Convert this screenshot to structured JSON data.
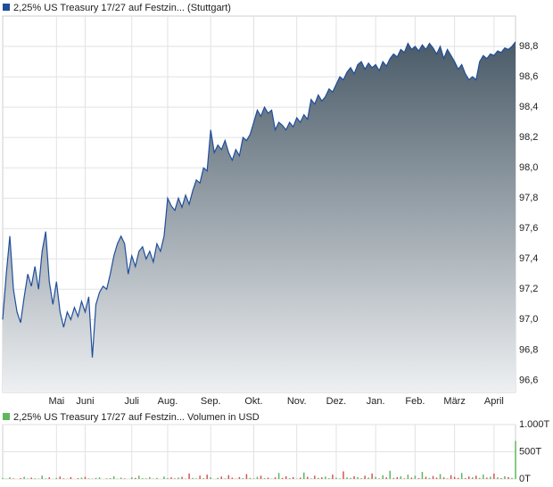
{
  "chart_data": [
    {
      "type": "area",
      "legend": "2,25% US Treasury 17/27 auf Festzin... (Stuttgart)",
      "legend_color": "#1f4e9c",
      "line_color": "#1f4e9c",
      "fill_top": "#4a5b68",
      "fill_bottom": "#eef0f2",
      "grid": true,
      "ylim": [
        96.52,
        99.0
      ],
      "yticks": [
        {
          "value": 96.6,
          "label": "96,6"
        },
        {
          "value": 96.8,
          "label": "96,8"
        },
        {
          "value": 97.0,
          "label": "97,0"
        },
        {
          "value": 97.2,
          "label": "97,2"
        },
        {
          "value": 97.4,
          "label": "97,4"
        },
        {
          "value": 97.6,
          "label": "97,6"
        },
        {
          "value": 97.8,
          "label": "97,8"
        },
        {
          "value": 98.0,
          "label": "98,0"
        },
        {
          "value": 98.2,
          "label": "98,2"
        },
        {
          "value": 98.4,
          "label": "98,4"
        },
        {
          "value": 98.6,
          "label": "98,6"
        },
        {
          "value": 98.8,
          "label": "98,8"
        }
      ],
      "categories": [
        null,
        null,
        null,
        null,
        null,
        null,
        null,
        null,
        null,
        null,
        null,
        null,
        null,
        null,
        null,
        "Mai",
        null,
        null,
        null,
        null,
        null,
        null,
        null,
        "Juni",
        null,
        null,
        null,
        null,
        null,
        null,
        null,
        null,
        null,
        null,
        null,
        null,
        "Juli",
        null,
        null,
        null,
        null,
        null,
        null,
        null,
        null,
        null,
        "Aug.",
        null,
        null,
        null,
        null,
        null,
        null,
        null,
        null,
        null,
        null,
        null,
        "Sep.",
        null,
        null,
        null,
        null,
        null,
        null,
        null,
        null,
        null,
        null,
        null,
        "Okt.",
        null,
        null,
        null,
        null,
        null,
        null,
        null,
        null,
        null,
        null,
        null,
        "Nov.",
        null,
        null,
        null,
        null,
        null,
        null,
        null,
        null,
        null,
        null,
        "Dez.",
        null,
        null,
        null,
        null,
        null,
        null,
        null,
        null,
        null,
        null,
        "Jan.",
        null,
        null,
        null,
        null,
        null,
        null,
        null,
        null,
        null,
        null,
        "Feb.",
        null,
        null,
        null,
        null,
        null,
        null,
        null,
        null,
        null,
        null,
        "März",
        null,
        null,
        null,
        null,
        null,
        null,
        null,
        null,
        null,
        null,
        "April",
        null,
        null,
        null,
        null,
        null,
        null
      ],
      "values": [
        97.0,
        97.3,
        97.55,
        97.2,
        97.05,
        96.98,
        97.15,
        97.3,
        97.22,
        97.35,
        97.2,
        97.45,
        97.58,
        97.25,
        97.1,
        97.25,
        97.05,
        96.95,
        97.05,
        97.0,
        97.08,
        97.02,
        97.12,
        97.05,
        97.15,
        96.75,
        97.1,
        97.18,
        97.22,
        97.2,
        97.3,
        97.42,
        97.5,
        97.55,
        97.5,
        97.3,
        97.42,
        97.35,
        97.45,
        97.48,
        97.4,
        97.45,
        97.38,
        97.5,
        97.45,
        97.55,
        97.8,
        97.75,
        97.72,
        97.8,
        97.74,
        97.82,
        97.76,
        97.85,
        97.92,
        97.9,
        98.0,
        97.98,
        98.25,
        98.1,
        98.15,
        98.12,
        98.18,
        98.1,
        98.05,
        98.12,
        98.08,
        98.2,
        98.18,
        98.22,
        98.3,
        98.38,
        98.34,
        98.4,
        98.36,
        98.38,
        98.25,
        98.3,
        98.28,
        98.25,
        98.3,
        98.27,
        98.33,
        98.3,
        98.35,
        98.32,
        98.45,
        98.42,
        98.48,
        98.44,
        98.47,
        98.52,
        98.5,
        98.55,
        98.6,
        98.58,
        98.63,
        98.66,
        98.62,
        98.68,
        98.7,
        98.65,
        98.69,
        98.66,
        98.68,
        98.64,
        98.7,
        98.67,
        98.72,
        98.75,
        98.73,
        98.78,
        98.76,
        98.82,
        98.78,
        98.8,
        98.77,
        98.81,
        98.78,
        98.82,
        98.79,
        98.75,
        98.8,
        98.72,
        98.78,
        98.74,
        98.7,
        98.65,
        98.68,
        98.62,
        98.58,
        98.6,
        98.58,
        98.7,
        98.74,
        98.72,
        98.75,
        98.74,
        98.77,
        98.76,
        98.79,
        98.78,
        98.8,
        98.83
      ]
    },
    {
      "type": "bar",
      "legend": "2,25% US Treasury 17/27 auf Festzin... Volumen in USD",
      "legend_color": "#5cb85c",
      "up_color": "#5cb85c",
      "down_color": "#d9534f",
      "grid": true,
      "ylim": [
        0,
        1000
      ],
      "yticks": [
        {
          "value": 0,
          "label": "0T"
        },
        {
          "value": 500,
          "label": "500T"
        },
        {
          "value": 1000,
          "label": "1.000T"
        }
      ],
      "values": [
        20,
        5,
        30,
        10,
        0,
        15,
        40,
        8,
        25,
        12,
        5,
        60,
        10,
        30,
        0,
        20,
        45,
        10,
        5,
        35,
        0,
        15,
        25,
        40,
        10,
        5,
        20,
        30,
        0,
        10,
        15,
        50,
        5,
        25,
        10,
        0,
        30,
        20,
        60,
        15,
        10,
        35,
        5,
        20,
        0,
        45,
        15,
        30,
        10,
        25,
        40,
        5,
        100,
        20,
        10,
        60,
        15,
        80,
        30,
        0,
        20,
        45,
        10,
        70,
        25,
        5,
        35,
        15,
        90,
        20,
        10,
        40,
        60,
        15,
        25,
        5,
        30,
        110,
        20,
        50,
        15,
        35,
        5,
        25,
        120,
        40,
        10,
        60,
        20,
        30,
        45,
        15,
        80,
        25,
        10,
        140,
        30,
        20,
        50,
        35,
        15,
        60,
        25,
        100,
        40,
        10,
        70,
        30,
        150,
        20,
        35,
        50,
        10,
        80,
        25,
        60,
        15,
        130,
        40,
        20,
        55,
        25,
        90,
        30,
        10,
        70,
        40,
        20,
        110,
        15,
        45,
        30,
        60,
        20,
        80,
        25,
        40,
        100,
        30,
        15,
        50,
        35,
        20,
        700
      ]
    }
  ]
}
